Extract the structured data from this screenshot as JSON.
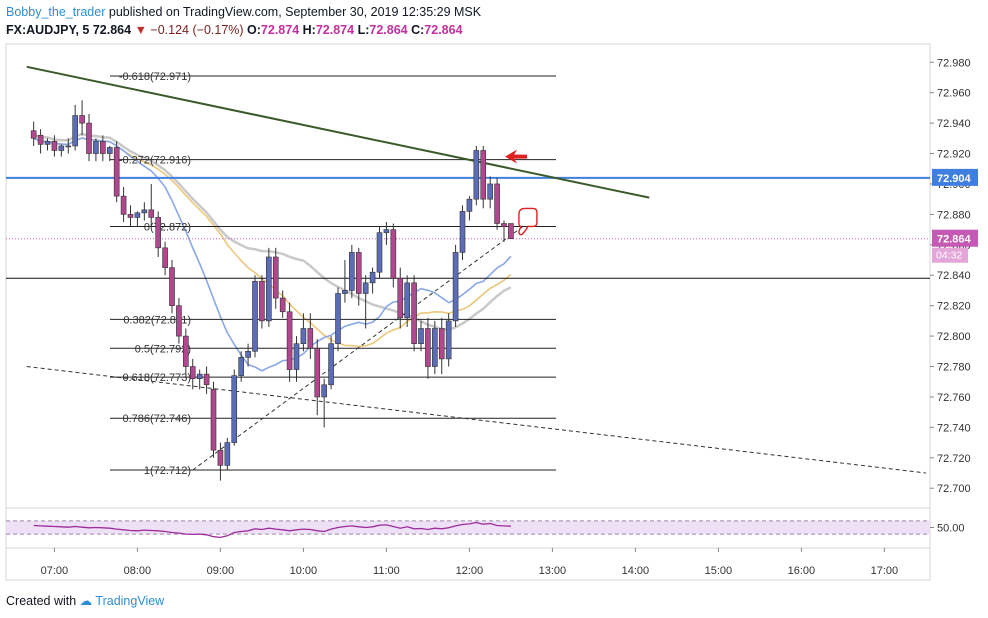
{
  "header": {
    "author": "Bobby_the_trader",
    "published": "published on TradingView.com, September 30, 2019 12:35:29 MSK",
    "symbol": "FX:AUDJPY, 5",
    "last": "72.864",
    "change": "−0.124 (−0.17%)",
    "o_label": "O:",
    "o_value": "72.874",
    "h_label": "H:",
    "h_value": "72.874",
    "l_label": "L:",
    "l_value": "72.864",
    "c_label": "C:",
    "c_value": "72.864"
  },
  "footer": {
    "created_with": "Created with",
    "brand": "TradingView"
  },
  "colors": {
    "bull": "#5b6db8",
    "bear": "#b0478f",
    "trendline": "#3a5a2a",
    "horizontal": "#3f7fe0",
    "ma_blue": "#8aa7e8",
    "ma_orange": "#ecc77a",
    "ma_gray": "#c9c9c9",
    "rsi": "#9c2c9c",
    "rsi_band": "#eee0f7",
    "price_tag": "#c45ab3",
    "arrow": "#e02020"
  },
  "chart_data": {
    "type": "candlestick",
    "symbol": "FX:AUDJPY",
    "timeframe": "5",
    "price_range": [
      72.687,
      72.992
    ],
    "price_ticks": [
      "72.980",
      "72.960",
      "72.940",
      "72.920",
      "72.900",
      "72.880",
      "72.860",
      "72.840",
      "72.820",
      "72.800",
      "72.780",
      "72.760",
      "72.740",
      "72.720",
      "72.700"
    ],
    "time_ticks": [
      "07:00",
      "08:00",
      "09:00",
      "10:00",
      "11:00",
      "12:00",
      "13:00",
      "14:00",
      "15:00",
      "16:00",
      "17:00"
    ],
    "horizontal_line": {
      "price": 72.904,
      "label": "72.904"
    },
    "last_price": {
      "value": "72.864",
      "countdown": "04:32"
    },
    "support_line": 72.838,
    "fib_levels": [
      {
        "label": "-0.618(72.971)",
        "price": 72.971
      },
      {
        "label": "-0.272(72.916)",
        "price": 72.916
      },
      {
        "label": "0(72.872)",
        "price": 72.872
      },
      {
        "label": "0.382(72.811)",
        "price": 72.811
      },
      {
        "label": "0.5(72.792)",
        "price": 72.792
      },
      {
        "label": "0.618(72.773)",
        "price": 72.773
      },
      {
        "label": "0.786(72.746)",
        "price": 72.746
      },
      {
        "label": "1(72.712)",
        "price": 72.712
      }
    ],
    "trendlines": [
      {
        "name": "resistance",
        "style": "solid",
        "points": [
          [
            "06:40",
            72.977
          ],
          [
            "14:10",
            72.891
          ]
        ]
      },
      {
        "name": "lower",
        "style": "dashed",
        "points": [
          [
            "06:40",
            72.78
          ],
          [
            "17:30",
            72.71
          ]
        ]
      },
      {
        "name": "rising",
        "style": "dashed",
        "points": [
          [
            "08:40",
            72.712
          ],
          [
            "12:40",
            72.873
          ]
        ]
      }
    ],
    "candles": [
      {
        "t": "06:45",
        "o": 72.935,
        "h": 72.941,
        "c": 72.93,
        "l": 72.925
      },
      {
        "t": "06:50",
        "o": 72.932,
        "h": 72.936,
        "c": 72.926,
        "l": 72.92
      },
      {
        "t": "06:55",
        "o": 72.926,
        "h": 72.93,
        "c": 72.928,
        "l": 72.922
      },
      {
        "t": "07:00",
        "o": 72.928,
        "h": 72.932,
        "c": 72.922,
        "l": 72.918
      },
      {
        "t": "07:05",
        "o": 72.922,
        "h": 72.926,
        "c": 72.925,
        "l": 72.918
      },
      {
        "t": "07:10",
        "o": 72.925,
        "h": 72.93,
        "c": 72.925,
        "l": 72.92
      },
      {
        "t": "07:15",
        "o": 72.925,
        "h": 72.952,
        "c": 72.945,
        "l": 72.922
      },
      {
        "t": "07:20",
        "o": 72.945,
        "h": 72.955,
        "c": 72.94,
        "l": 72.932
      },
      {
        "t": "07:25",
        "o": 72.94,
        "h": 72.946,
        "c": 72.92,
        "l": 72.915
      },
      {
        "t": "07:30",
        "o": 72.92,
        "h": 72.93,
        "c": 72.928,
        "l": 72.915
      },
      {
        "t": "07:35",
        "o": 72.928,
        "h": 72.932,
        "c": 72.92,
        "l": 72.915
      },
      {
        "t": "07:40",
        "o": 72.92,
        "h": 72.925,
        "c": 72.924,
        "l": 72.915
      },
      {
        "t": "07:45",
        "o": 72.924,
        "h": 72.928,
        "c": 72.892,
        "l": 72.888
      },
      {
        "t": "07:50",
        "o": 72.892,
        "h": 72.898,
        "c": 72.88,
        "l": 72.875
      },
      {
        "t": "07:55",
        "o": 72.88,
        "h": 72.886,
        "c": 72.878,
        "l": 72.872
      },
      {
        "t": "08:00",
        "o": 72.878,
        "h": 72.882,
        "c": 72.881,
        "l": 72.872
      },
      {
        "t": "08:05",
        "o": 72.881,
        "h": 72.888,
        "c": 72.883,
        "l": 72.876
      },
      {
        "t": "08:10",
        "o": 72.883,
        "h": 72.9,
        "c": 72.878,
        "l": 72.872
      },
      {
        "t": "08:15",
        "o": 72.878,
        "h": 72.882,
        "c": 72.858,
        "l": 72.852
      },
      {
        "t": "08:20",
        "o": 72.858,
        "h": 72.862,
        "c": 72.845,
        "l": 72.84
      },
      {
        "t": "08:25",
        "o": 72.845,
        "h": 72.85,
        "c": 72.82,
        "l": 72.815
      },
      {
        "t": "08:30",
        "o": 72.82,
        "h": 72.825,
        "c": 72.8,
        "l": 72.795
      },
      {
        "t": "08:35",
        "o": 72.8,
        "h": 72.805,
        "c": 72.78,
        "l": 72.775
      },
      {
        "t": "08:40",
        "o": 72.78,
        "h": 72.785,
        "c": 72.772,
        "l": 72.765
      },
      {
        "t": "08:45",
        "o": 72.772,
        "h": 72.778,
        "c": 72.775,
        "l": 72.765
      },
      {
        "t": "08:50",
        "o": 72.775,
        "h": 72.78,
        "c": 72.768,
        "l": 72.762
      },
      {
        "t": "08:55",
        "o": 72.765,
        "h": 72.77,
        "c": 72.725,
        "l": 72.72
      },
      {
        "t": "09:00",
        "o": 72.725,
        "h": 72.73,
        "c": 72.715,
        "l": 72.705
      },
      {
        "t": "09:05",
        "o": 72.715,
        "h": 72.733,
        "c": 72.73,
        "l": 72.712
      },
      {
        "t": "09:10",
        "o": 72.73,
        "h": 72.778,
        "c": 72.774,
        "l": 72.728
      },
      {
        "t": "09:15",
        "o": 72.774,
        "h": 72.79,
        "c": 72.786,
        "l": 72.77
      },
      {
        "t": "09:20",
        "o": 72.786,
        "h": 72.795,
        "c": 72.79,
        "l": 72.78
      },
      {
        "t": "09:25",
        "o": 72.79,
        "h": 72.84,
        "c": 72.836,
        "l": 72.786
      },
      {
        "t": "09:30",
        "o": 72.836,
        "h": 72.84,
        "c": 72.81,
        "l": 72.805
      },
      {
        "t": "09:35",
        "o": 72.81,
        "h": 72.858,
        "c": 72.852,
        "l": 72.806
      },
      {
        "t": "09:40",
        "o": 72.852,
        "h": 72.858,
        "c": 72.825,
        "l": 72.818
      },
      {
        "t": "09:45",
        "o": 72.825,
        "h": 72.83,
        "c": 72.816,
        "l": 72.812
      },
      {
        "t": "09:50",
        "o": 72.816,
        "h": 72.822,
        "c": 72.778,
        "l": 72.77
      },
      {
        "t": "09:55",
        "o": 72.778,
        "h": 72.8,
        "c": 72.795,
        "l": 72.77
      },
      {
        "t": "10:00",
        "o": 72.795,
        "h": 72.815,
        "c": 72.805,
        "l": 72.79
      },
      {
        "t": "10:05",
        "o": 72.805,
        "h": 72.815,
        "c": 72.792,
        "l": 72.785
      },
      {
        "t": "10:10",
        "o": 72.792,
        "h": 72.798,
        "c": 72.76,
        "l": 72.748
      },
      {
        "t": "10:15",
        "o": 72.76,
        "h": 72.772,
        "c": 72.768,
        "l": 72.74
      },
      {
        "t": "10:20",
        "o": 72.768,
        "h": 72.8,
        "c": 72.795,
        "l": 72.765
      },
      {
        "t": "10:25",
        "o": 72.795,
        "h": 72.832,
        "c": 72.828,
        "l": 72.79
      },
      {
        "t": "10:30",
        "o": 72.828,
        "h": 72.85,
        "c": 72.83,
        "l": 72.822
      },
      {
        "t": "10:35",
        "o": 72.83,
        "h": 72.86,
        "c": 72.855,
        "l": 72.825
      },
      {
        "t": "10:40",
        "o": 72.855,
        "h": 72.858,
        "c": 72.828,
        "l": 72.82
      },
      {
        "t": "10:45",
        "o": 72.828,
        "h": 72.84,
        "c": 72.835,
        "l": 72.805
      },
      {
        "t": "10:50",
        "o": 72.835,
        "h": 72.845,
        "c": 72.842,
        "l": 72.828
      },
      {
        "t": "10:55",
        "o": 72.842,
        "h": 72.872,
        "c": 72.868,
        "l": 72.838
      },
      {
        "t": "11:00",
        "o": 72.868,
        "h": 72.875,
        "c": 72.87,
        "l": 72.86
      },
      {
        "t": "11:05",
        "o": 72.87,
        "h": 72.874,
        "c": 72.838,
        "l": 72.832
      },
      {
        "t": "11:10",
        "o": 72.838,
        "h": 72.845,
        "c": 72.812,
        "l": 72.805
      },
      {
        "t": "11:15",
        "o": 72.812,
        "h": 72.84,
        "c": 72.835,
        "l": 72.806
      },
      {
        "t": "11:20",
        "o": 72.835,
        "h": 72.84,
        "c": 72.795,
        "l": 72.79
      },
      {
        "t": "11:25",
        "o": 72.795,
        "h": 72.81,
        "c": 72.805,
        "l": 72.79
      },
      {
        "t": "11:30",
        "o": 72.805,
        "h": 72.812,
        "c": 72.78,
        "l": 72.772
      },
      {
        "t": "11:35",
        "o": 72.78,
        "h": 72.81,
        "c": 72.805,
        "l": 72.775
      },
      {
        "t": "11:40",
        "o": 72.805,
        "h": 72.812,
        "c": 72.785,
        "l": 72.775
      },
      {
        "t": "11:45",
        "o": 72.785,
        "h": 72.815,
        "c": 72.81,
        "l": 72.78
      },
      {
        "t": "11:50",
        "o": 72.81,
        "h": 72.86,
        "c": 72.855,
        "l": 72.806
      },
      {
        "t": "11:55",
        "o": 72.855,
        "h": 72.886,
        "c": 72.882,
        "l": 72.85
      },
      {
        "t": "12:00",
        "o": 72.882,
        "h": 72.892,
        "c": 72.89,
        "l": 72.876
      },
      {
        "t": "12:05",
        "o": 72.89,
        "h": 72.925,
        "c": 72.922,
        "l": 72.886
      },
      {
        "t": "12:10",
        "o": 72.922,
        "h": 72.925,
        "c": 72.89,
        "l": 72.884
      },
      {
        "t": "12:15",
        "o": 72.89,
        "h": 72.905,
        "c": 72.9,
        "l": 72.884
      },
      {
        "t": "12:20",
        "o": 72.9,
        "h": 72.904,
        "c": 72.874,
        "l": 72.87
      },
      {
        "t": "12:25",
        "o": 72.874,
        "h": 72.876,
        "c": 72.872,
        "l": 72.862
      },
      {
        "t": "12:30",
        "o": 72.874,
        "h": 72.874,
        "c": 72.864,
        "l": 72.864
      }
    ],
    "rsi": {
      "label": "50.00",
      "upper": 70,
      "lower": 30,
      "values": [
        56,
        55,
        54,
        53,
        52,
        51,
        53,
        51,
        49,
        50,
        49,
        48,
        45,
        43,
        41,
        40,
        42,
        41,
        40,
        38,
        35,
        33,
        30,
        29,
        30,
        28,
        22,
        20,
        25,
        35,
        38,
        40,
        46,
        44,
        48,
        45,
        43,
        40,
        43,
        45,
        44,
        40,
        38,
        45,
        50,
        53,
        55,
        52,
        50,
        52,
        57,
        58,
        53,
        48,
        52,
        46,
        47,
        44,
        48,
        46,
        49,
        55,
        59,
        61,
        65,
        60,
        62,
        56,
        55,
        54
      ]
    }
  }
}
